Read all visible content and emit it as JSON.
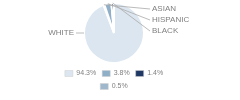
{
  "chart_data": {
    "type": "pie",
    "categories": [
      "WHITE",
      "ASIAN",
      "HISPANIC",
      "BLACK"
    ],
    "values": [
      94.3,
      0.5,
      3.8,
      1.4
    ],
    "colors": [
      "#dce6f0",
      "#a0b8cc",
      "#8fafc8",
      "#1f3864"
    ],
    "legend": "bottom",
    "legend_entries": [
      {
        "label": "94.3%",
        "color": "#dce6f0"
      },
      {
        "label": "3.8%",
        "color": "#8fafc8"
      },
      {
        "label": "1.4%",
        "color": "#1f3864"
      },
      {
        "label": "0.5%",
        "color": "#a0b8cc"
      }
    ],
    "text_color": "#808080"
  }
}
